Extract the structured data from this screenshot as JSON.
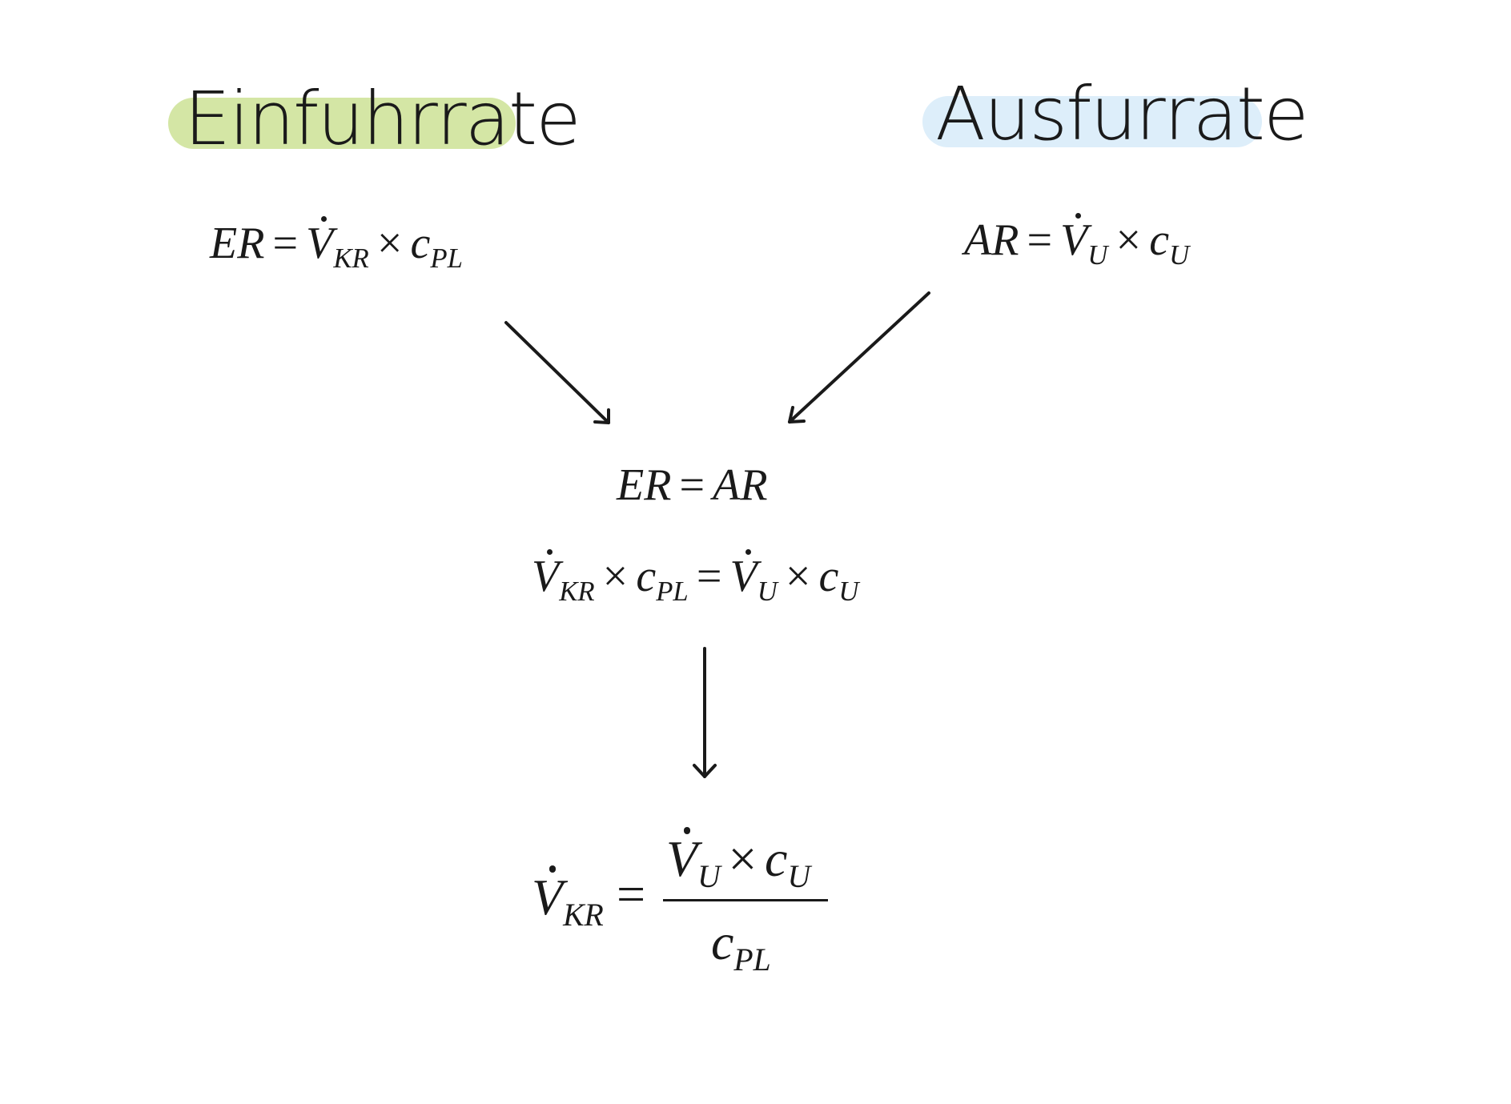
{
  "headings": {
    "left": "Einfuhrrate",
    "right": "Ausfurrate"
  },
  "colors": {
    "left_highlight": "#d4e6a5",
    "right_highlight": "#ddeefa",
    "ink": "#1a1a1a"
  },
  "equations": {
    "er": {
      "lhs": "ER",
      "equals": "=",
      "flow": "V",
      "flow_sub": "KR",
      "times": "×",
      "conc": "c",
      "conc_sub": "PL"
    },
    "ar": {
      "lhs": "AR",
      "equals": "=",
      "flow": "V",
      "flow_sub": "U",
      "times": "×",
      "conc": "c",
      "conc_sub": "U"
    },
    "balance": {
      "left": "ER",
      "equals": "=",
      "right": "AR"
    },
    "expanded": {
      "flow1": "V",
      "flow1_sub": "KR",
      "times1": "×",
      "conc1": "c",
      "conc1_sub": "PL",
      "equals": "=",
      "flow2": "V",
      "flow2_sub": "U",
      "times2": "×",
      "conc2": "c",
      "conc2_sub": "U"
    },
    "result": {
      "lhs": "V",
      "lhs_sub": "KR",
      "equals": "=",
      "num_flow": "V",
      "num_flow_sub": "U",
      "num_times": "×",
      "num_conc": "c",
      "num_conc_sub": "U",
      "den_conc": "c",
      "den_conc_sub": "PL"
    }
  }
}
